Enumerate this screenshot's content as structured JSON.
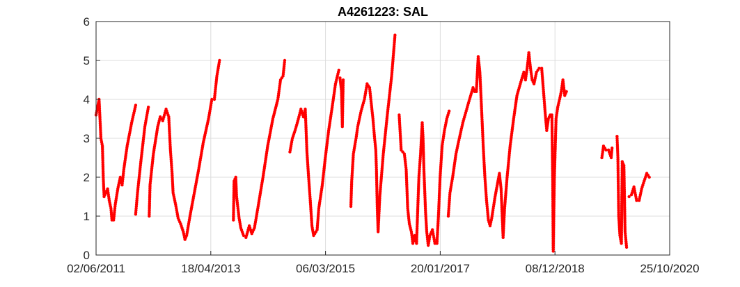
{
  "chart_data": {
    "type": "scatter",
    "title": "A4261223: SAL",
    "xlabel": "",
    "ylabel": "",
    "x_type": "date",
    "xlim": [
      "2011-06-02",
      "2020-10-25"
    ],
    "ylim": [
      0,
      6
    ],
    "x_tick_labels": [
      "02/06/2011",
      "18/04/2013",
      "06/03/2015",
      "20/01/2017",
      "08/12/2018",
      "25/10/2020"
    ],
    "y_tick_labels": [
      "0",
      "1",
      "2",
      "3",
      "4",
      "5",
      "6"
    ],
    "grid": true,
    "legend": "none",
    "marker": "dot",
    "series": [
      {
        "color": "#ff0000",
        "segments": [
          [
            [
              "2011-06-02",
              3.6
            ],
            [
              "2011-06-20",
              4.0
            ],
            [
              "2011-07-01",
              3.0
            ],
            [
              "2011-07-10",
              2.8
            ],
            [
              "2011-07-15",
              2.0
            ],
            [
              "2011-07-20",
              1.5
            ],
            [
              "2011-07-30",
              1.6
            ],
            [
              "2011-08-10",
              1.7
            ],
            [
              "2011-08-20",
              1.4
            ],
            [
              "2011-08-30",
              1.2
            ],
            [
              "2011-09-05",
              0.9
            ],
            [
              "2011-09-15",
              0.9
            ],
            [
              "2011-09-25",
              1.3
            ],
            [
              "2011-10-10",
              1.7
            ],
            [
              "2011-10-25",
              2.0
            ],
            [
              "2011-11-05",
              1.8
            ],
            [
              "2011-11-15",
              2.2
            ],
            [
              "2011-12-05",
              2.8
            ],
            [
              "2012-01-01",
              3.4
            ],
            [
              "2012-01-25",
              3.85
            ]
          ],
          [
            [
              "2012-01-25",
              1.05
            ],
            [
              "2012-02-05",
              1.6
            ],
            [
              "2012-02-25",
              2.4
            ],
            [
              "2012-03-20",
              3.3
            ],
            [
              "2012-04-10",
              3.8
            ]
          ],
          [
            [
              "2012-04-15",
              1.0
            ],
            [
              "2012-04-20",
              1.8
            ],
            [
              "2012-05-10",
              2.6
            ],
            [
              "2012-06-05",
              3.3
            ],
            [
              "2012-06-20",
              3.55
            ],
            [
              "2012-07-05",
              3.45
            ],
            [
              "2012-07-25",
              3.75
            ],
            [
              "2012-08-10",
              3.55
            ],
            [
              "2012-08-20",
              2.7
            ],
            [
              "2012-08-30",
              2.1
            ],
            [
              "2012-09-05",
              1.6
            ],
            [
              "2012-09-20",
              1.3
            ],
            [
              "2012-10-05",
              0.95
            ],
            [
              "2012-10-20",
              0.8
            ],
            [
              "2012-11-05",
              0.6
            ],
            [
              "2012-11-15",
              0.4
            ],
            [
              "2012-11-25",
              0.5
            ],
            [
              "2012-12-15",
              1.0
            ],
            [
              "2013-01-10",
              1.6
            ],
            [
              "2013-02-05",
              2.2
            ],
            [
              "2013-03-05",
              2.9
            ],
            [
              "2013-04-05",
              3.5
            ],
            [
              "2013-04-25",
              4.0
            ],
            [
              "2013-05-10",
              4.0
            ],
            [
              "2013-05-25",
              4.6
            ],
            [
              "2013-06-10",
              5.0
            ]
          ],
          [
            [
              "2013-09-01",
              0.9
            ],
            [
              "2013-09-05",
              1.9
            ],
            [
              "2013-09-15",
              2.0
            ],
            [
              "2013-09-20",
              1.5
            ],
            [
              "2013-10-05",
              0.95
            ],
            [
              "2013-10-15",
              0.7
            ],
            [
              "2013-11-01",
              0.5
            ],
            [
              "2013-11-15",
              0.45
            ],
            [
              "2013-12-05",
              0.75
            ],
            [
              "2013-12-20",
              0.55
            ],
            [
              "2014-01-05",
              0.7
            ],
            [
              "2014-01-25",
              1.2
            ],
            [
              "2014-02-25",
              2.0
            ],
            [
              "2014-03-25",
              2.8
            ],
            [
              "2014-04-25",
              3.5
            ],
            [
              "2014-05-25",
              4.0
            ],
            [
              "2014-06-10",
              4.5
            ],
            [
              "2014-06-25",
              4.6
            ],
            [
              "2014-07-05",
              5.0
            ]
          ],
          [
            [
              "2014-08-05",
              2.65
            ],
            [
              "2014-08-20",
              3.0
            ],
            [
              "2014-09-05",
              3.2
            ],
            [
              "2014-09-25",
              3.5
            ],
            [
              "2014-10-10",
              3.75
            ],
            [
              "2014-10-25",
              3.55
            ],
            [
              "2014-11-05",
              3.75
            ],
            [
              "2014-11-15",
              2.65
            ],
            [
              "2014-11-25",
              2.0
            ],
            [
              "2014-12-05",
              1.4
            ],
            [
              "2014-12-15",
              0.75
            ],
            [
              "2014-12-25",
              0.5
            ],
            [
              "2015-01-15",
              0.65
            ],
            [
              "2015-01-25",
              1.2
            ],
            [
              "2015-02-15",
              1.8
            ],
            [
              "2015-03-05",
              2.5
            ],
            [
              "2015-03-25",
              3.2
            ],
            [
              "2015-04-15",
              3.8
            ],
            [
              "2015-05-05",
              4.4
            ],
            [
              "2015-05-25",
              4.75
            ]
          ],
          [
            [
              "2015-06-01",
              4.55
            ],
            [
              "2015-06-10",
              4.2
            ],
            [
              "2015-06-15",
              3.3
            ],
            [
              "2015-06-20",
              4.5
            ]
          ],
          [
            [
              "2015-08-05",
              1.25
            ],
            [
              "2015-08-10",
              1.9
            ],
            [
              "2015-08-20",
              2.6
            ],
            [
              "2015-09-05",
              3.0
            ],
            [
              "2015-09-15",
              3.3
            ],
            [
              "2015-10-05",
              3.7
            ],
            [
              "2015-10-25",
              4.0
            ],
            [
              "2015-11-10",
              4.4
            ],
            [
              "2015-11-25",
              4.3
            ],
            [
              "2015-12-05",
              3.9
            ],
            [
              "2015-12-15",
              3.5
            ],
            [
              "2015-12-25",
              3.0
            ],
            [
              "2016-01-01",
              2.7
            ],
            [
              "2016-01-05",
              2.2
            ],
            [
              "2016-01-10",
              1.2
            ],
            [
              "2016-01-15",
              0.6
            ],
            [
              "2016-01-25",
              1.5
            ],
            [
              "2016-02-15",
              2.6
            ],
            [
              "2016-03-10",
              3.6
            ],
            [
              "2016-04-05",
              4.6
            ],
            [
              "2016-04-25",
              5.65
            ]
          ],
          [
            [
              "2016-05-20",
              3.6
            ],
            [
              "2016-06-01",
              2.7
            ],
            [
              "2016-06-20",
              2.6
            ],
            [
              "2016-07-01",
              2.2
            ],
            [
              "2016-07-10",
              1.2
            ],
            [
              "2016-07-20",
              0.8
            ],
            [
              "2016-08-01",
              0.6
            ],
            [
              "2016-08-10",
              0.3
            ],
            [
              "2016-08-20",
              0.5
            ],
            [
              "2016-09-01",
              0.3
            ],
            [
              "2016-09-10",
              1.4
            ],
            [
              "2016-09-15",
              2.0
            ],
            [
              "2016-09-25",
              2.6
            ],
            [
              "2016-10-05",
              3.4
            ],
            [
              "2016-10-10",
              3.0
            ],
            [
              "2016-10-15",
              2.2
            ],
            [
              "2016-10-25",
              1.1
            ],
            [
              "2016-11-01",
              0.6
            ],
            [
              "2016-11-10",
              0.25
            ],
            [
              "2016-11-20",
              0.5
            ],
            [
              "2016-12-05",
              0.65
            ],
            [
              "2016-12-20",
              0.3
            ],
            [
              "2017-01-01",
              0.3
            ],
            [
              "2017-01-10",
              1.0
            ],
            [
              "2017-01-20",
              2.0
            ],
            [
              "2017-02-01",
              2.8
            ],
            [
              "2017-02-15",
              3.2
            ],
            [
              "2017-03-01",
              3.5
            ],
            [
              "2017-03-15",
              3.7
            ]
          ],
          [
            [
              "2017-03-10",
              1.0
            ],
            [
              "2017-03-20",
              1.6
            ],
            [
              "2017-04-05",
              2.0
            ],
            [
              "2017-04-25",
              2.6
            ],
            [
              "2017-05-15",
              3.0
            ],
            [
              "2017-06-05",
              3.4
            ],
            [
              "2017-06-25",
              3.7
            ],
            [
              "2017-07-15",
              4.0
            ],
            [
              "2017-08-05",
              4.3
            ],
            [
              "2017-08-15",
              4.2
            ],
            [
              "2017-08-25",
              4.2
            ],
            [
              "2017-09-05",
              5.1
            ],
            [
              "2017-09-15",
              4.7
            ],
            [
              "2017-10-01",
              3.2
            ],
            [
              "2017-10-05",
              2.8
            ],
            [
              "2017-10-15",
              2.0
            ],
            [
              "2017-10-25",
              1.4
            ],
            [
              "2017-11-05",
              0.9
            ],
            [
              "2017-11-15",
              0.75
            ],
            [
              "2017-11-25",
              0.95
            ],
            [
              "2017-12-15",
              1.5
            ],
            [
              "2018-01-10",
              2.1
            ],
            [
              "2018-01-20",
              1.7
            ],
            [
              "2018-02-01",
              0.45
            ],
            [
              "2018-02-10",
              1.2
            ],
            [
              "2018-02-25",
              2.0
            ],
            [
              "2018-03-15",
              2.8
            ],
            [
              "2018-04-05",
              3.5
            ],
            [
              "2018-04-25",
              4.1
            ],
            [
              "2018-05-15",
              4.4
            ],
            [
              "2018-06-05",
              4.7
            ],
            [
              "2018-06-15",
              4.5
            ],
            [
              "2018-06-25",
              4.8
            ],
            [
              "2018-07-05",
              5.2
            ],
            [
              "2018-07-15",
              4.8
            ],
            [
              "2018-07-25",
              4.5
            ],
            [
              "2018-08-05",
              4.4
            ],
            [
              "2018-08-20",
              4.7
            ],
            [
              "2018-09-05",
              4.8
            ],
            [
              "2018-09-20",
              4.8
            ],
            [
              "2018-10-01",
              4.2
            ],
            [
              "2018-10-10",
              3.7
            ],
            [
              "2018-10-20",
              3.2
            ],
            [
              "2018-10-30",
              3.5
            ],
            [
              "2018-11-10",
              3.6
            ],
            [
              "2018-11-20",
              3.6
            ],
            [
              "2018-11-25",
              1.9
            ],
            [
              "2018-11-28",
              0.1
            ],
            [
              "2018-12-05",
              2.0
            ],
            [
              "2018-12-15",
              3.5
            ],
            [
              "2018-12-25",
              3.8
            ],
            [
              "2019-01-05",
              4.0
            ],
            [
              "2019-01-15",
              4.2
            ],
            [
              "2019-01-25",
              4.5
            ],
            [
              "2019-02-05",
              4.1
            ],
            [
              "2019-02-15",
              4.2
            ]
          ],
          [
            [
              "2019-09-15",
              2.5
            ],
            [
              "2019-09-25",
              2.8
            ],
            [
              "2019-10-10",
              2.7
            ],
            [
              "2019-10-25",
              2.7
            ],
            [
              "2019-11-10",
              2.5
            ],
            [
              "2019-11-15",
              2.75
            ]
          ],
          [
            [
              "2019-12-15",
              3.05
            ],
            [
              "2019-12-20",
              2.5
            ],
            [
              "2019-12-25",
              1.0
            ],
            [
              "2020-01-01",
              0.5
            ],
            [
              "2020-01-10",
              0.3
            ],
            [
              "2020-01-15",
              2.4
            ],
            [
              "2020-01-25",
              2.3
            ],
            [
              "2020-02-01",
              0.6
            ],
            [
              "2020-02-10",
              0.2
            ]
          ],
          [
            [
              "2020-02-25",
              1.5
            ],
            [
              "2020-03-10",
              1.55
            ],
            [
              "2020-03-25",
              1.75
            ],
            [
              "2020-04-10",
              1.4
            ],
            [
              "2020-04-25",
              1.4
            ],
            [
              "2020-05-10",
              1.7
            ],
            [
              "2020-05-25",
              1.9
            ],
            [
              "2020-06-10",
              2.1
            ],
            [
              "2020-06-25",
              2.0
            ]
          ]
        ]
      }
    ]
  }
}
